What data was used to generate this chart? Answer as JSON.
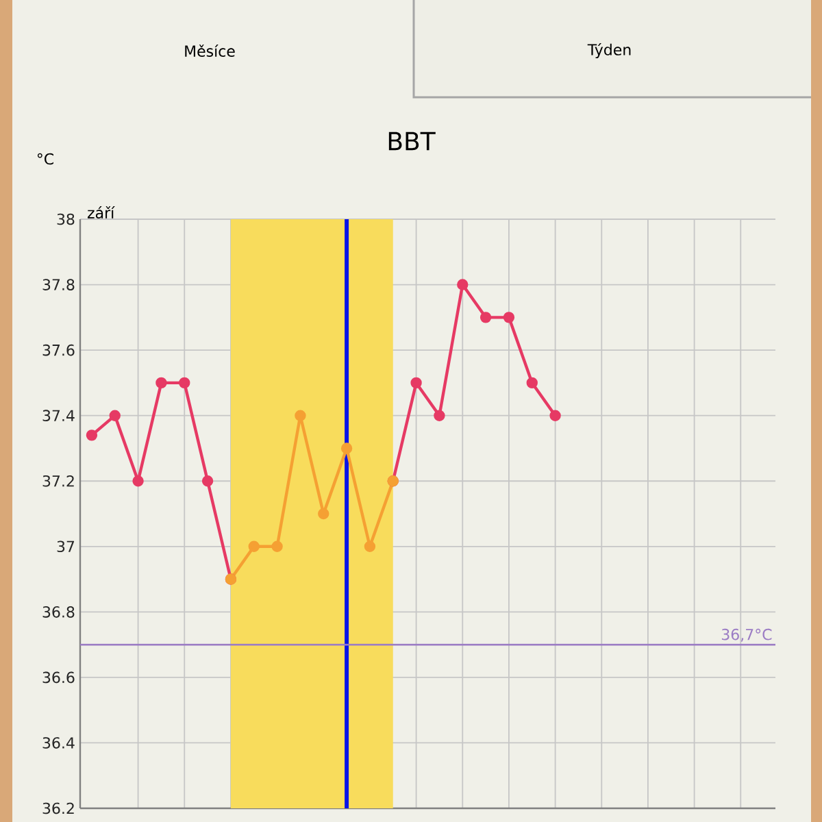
{
  "chart_data": {
    "type": "line",
    "title": "BBT",
    "ylabel": "°C",
    "categories": [
      null,
      null,
      null,
      null,
      null,
      null,
      null,
      null,
      null,
      null,
      null,
      null,
      null,
      null,
      null,
      null,
      null,
      null,
      null,
      null,
      null,
      null,
      null,
      null,
      null,
      null,
      null,
      null,
      null,
      null
    ],
    "series": [
      {
        "color": "#e63a64",
        "values": [
          37.34,
          37.4,
          37.2,
          37.5,
          37.5,
          37.2,
          36.9,
          null,
          null,
          null,
          null,
          null,
          null,
          37.2,
          37.5,
          37.4,
          37.8,
          37.7,
          37.7,
          37.5,
          37.4,
          null,
          null,
          null,
          null,
          null,
          null,
          null,
          null,
          null
        ]
      },
      {
        "color": "#f5a033",
        "values": [
          null,
          null,
          null,
          null,
          null,
          null,
          36.9,
          37.0,
          37.0,
          37.4,
          37.1,
          37.3,
          37.0,
          37.2,
          null,
          null,
          null,
          null,
          null,
          null,
          null,
          null,
          null,
          null,
          null,
          null,
          null,
          null,
          null,
          null
        ]
      }
    ],
    "ylim": [
      36.2,
      38
    ],
    "yticks": [
      36.2,
      36.4,
      36.6,
      36.8,
      37,
      37.2,
      37.4,
      37.6,
      37.8,
      38
    ],
    "ref_lines": [
      {
        "axis": "y",
        "value": 36.7,
        "label": "36,7°C",
        "color": "#9b7cc4"
      }
    ],
    "grid": true,
    "marker": "circle",
    "tick_labels": "y",
    "annotations": [
      "Měsíce",
      "Týden",
      "září"
    ]
  }
}
